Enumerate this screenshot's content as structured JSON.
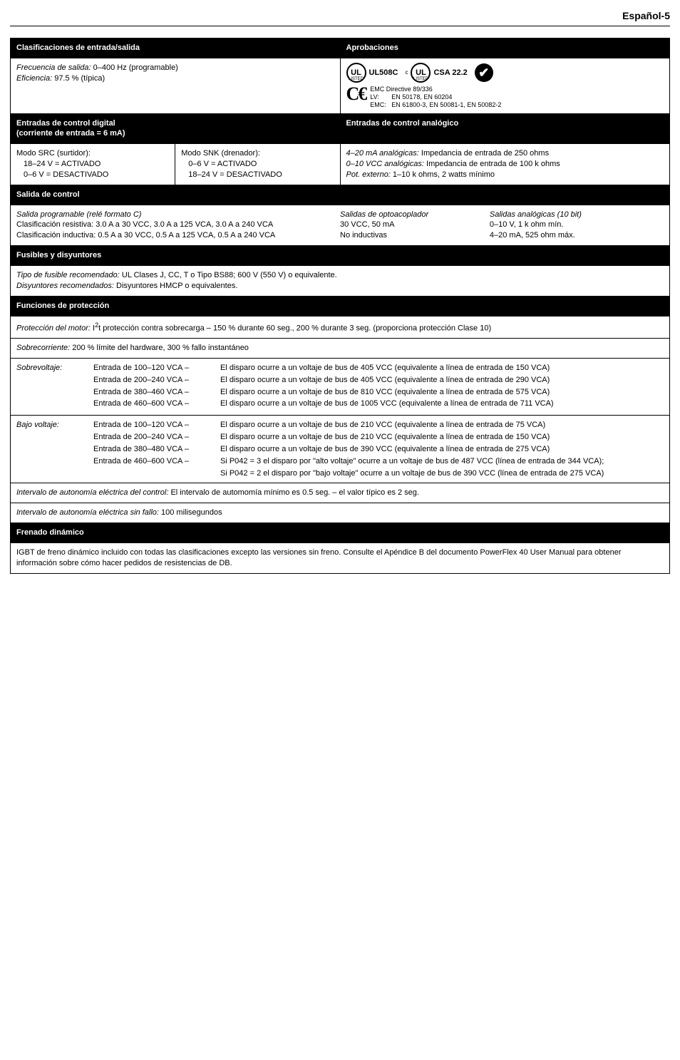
{
  "page_header": "Español-5",
  "spec_io": {
    "header": "Clasificaciones de entrada/salida",
    "freq_label": "Frecuencia de salida:",
    "freq_val": " 0–400 Hz (programable)",
    "eff_label": "Eficiencia:",
    "eff_val": " 97.5 % (típica)",
    "aprob_header": "Aprobaciones",
    "ul508c": "UL508C",
    "csa": "CSA 22.2",
    "emc_title": "EMC Directive 89/336",
    "emc_lv": "LV:       EN 50178, EN 60204",
    "emc_emc": "EMC:   EN 61800-3, EN 50081-1, EN 50082-2"
  },
  "digital_in": {
    "header": "Entradas de control digital\n(corriente de entrada = 6 mA)",
    "analog_header": "Entradas de control analógico",
    "src_title": "Modo SRC (surtidor):",
    "src_l1": "18–24 V = ACTIVADO",
    "src_l2": "0–6 V = DESACTIVADO",
    "snk_title": "Modo SNK (drenador):",
    "snk_l1": "0–6 V = ACTIVADO",
    "snk_l2": "18–24 V = DESACTIVADO",
    "ana_l1_label": "4–20 mA analógicas:",
    "ana_l1_val": " Impedancia de entrada de 250 ohms",
    "ana_l2_label": "0–10 VCC analógicas:",
    "ana_l2_val": " Impedancia de entrada de 100 k ohms",
    "ana_l3_label": "Pot. externo:",
    "ana_l3_val": " 1–10 k ohms, 2 watts mínimo"
  },
  "ctrl_out": {
    "header": "Salida de control",
    "col1_title": "Salida programable (relé formato C)",
    "col1_l1": "Clasificación resistiva: 3.0 A a 30 VCC, 3.0 A a 125 VCA, 3.0 A a 240 VCA",
    "col1_l2": "Clasificación inductiva: 0.5 A a  30 VCC, 0.5 A a 125 VCA, 0.5 A a 240 VCA",
    "col2_title": "Salidas de optoacoplador",
    "col2_l1": "30 VCC, 50 mA",
    "col2_l2": "No inductivas",
    "col3_title": "Salidas analógicas (10 bit)",
    "col3_l1": "0–10 V, 1 k ohm mín.",
    "col3_l2": "4–20 mA, 525 ohm máx."
  },
  "fuses": {
    "header": "Fusibles y disyuntores",
    "l1_label": "Tipo de fusible recomendado:",
    "l1_val": " UL Clases J, CC, T o Tipo BS88; 600 V (550 V) o equivalente.",
    "l2_label": "Disyuntores recomendados:",
    "l2_val": " Disyuntores HMCP o equivalentes."
  },
  "protect": {
    "header": "Funciones de protección",
    "motor_label": "Protección del motor:",
    "motor_val_pre": " I",
    "motor_val_sup": "2",
    "motor_val_post": "t protección contra sobrecarga – 150 % durante 60 seg., 200 % durante 3 seg. (proporciona protección Clase 10)",
    "over_label": "Sobrecorriente:",
    "over_val": " 200 % límite del hardware, 300 % fallo instantáneo",
    "sv_label": "Sobrevoltaje:",
    "sv_rows": [
      {
        "left": "Entrada de 100–120 VCA –",
        "right": "El disparo ocurre a un voltaje de bus de 405 VCC (equivalente a línea de entrada de 150 VCA)"
      },
      {
        "left": "Entrada de 200–240 VCA –",
        "right": "El disparo ocurre a un voltaje de bus de 405 VCC (equivalente a línea de entrada de 290 VCA)"
      },
      {
        "left": "Entrada de 380–460 VCA –",
        "right": "El disparo ocurre a un voltaje de bus de 810 VCC (equivalente a línea de entrada de 575 VCA)"
      },
      {
        "left": "Entrada de 460–600 VCA –",
        "right": "El disparo ocurre a un voltaje de bus de 1005 VCC (equivalente a línea de entrada de 711 VCA)"
      }
    ],
    "bv_label": "Bajo voltaje:",
    "bv_rows": [
      {
        "left": "Entrada de 100–120 VCA –",
        "right": "El disparo ocurre a un voltaje de bus de 210 VCC (equivalente a línea de entrada de 75 VCA)"
      },
      {
        "left": "Entrada de 200–240 VCA –",
        "right": "El disparo ocurre a un voltaje de bus de 210 VCC (equivalente a línea de entrada de 150 VCA)"
      },
      {
        "left": "Entrada de 380–480 VCA –",
        "right": "El disparo ocurre a un voltaje de bus de 390 VCC (equivalente a línea de entrada de 275 VCA)"
      },
      {
        "left": "Entrada de 460–600 VCA –",
        "right": "Si P042 = 3 el disparo por \"alto voltaje\" ocurre a un voltaje de bus de 487 VCC (línea de entrada de 344 VCA);"
      }
    ],
    "bv_extra": "Si P042 = 2 el disparo por \"bajo voltaje\" ocurre a un voltaje de bus de 390 VCC (línea de entrada de 275 VCA)",
    "auto_label": "Intervalo de autonomía eléctrica del control:",
    "auto_val": " El intervalo de automomía mínimo es 0.5 seg. – el valor típico es 2 seg.",
    "fail_label": "Intervalo de autonomía eléctrica sin fallo:",
    "fail_val": " 100 milisegundos"
  },
  "brake": {
    "header": "Frenado dinámico",
    "text": "IGBT de freno dinámico incluido con todas las clasificaciones excepto las versiones sin freno. Consulte el Apéndice B del documento PowerFlex 40 User Manual para obtener información sobre cómo hacer pedidos de resistencias de DB."
  }
}
